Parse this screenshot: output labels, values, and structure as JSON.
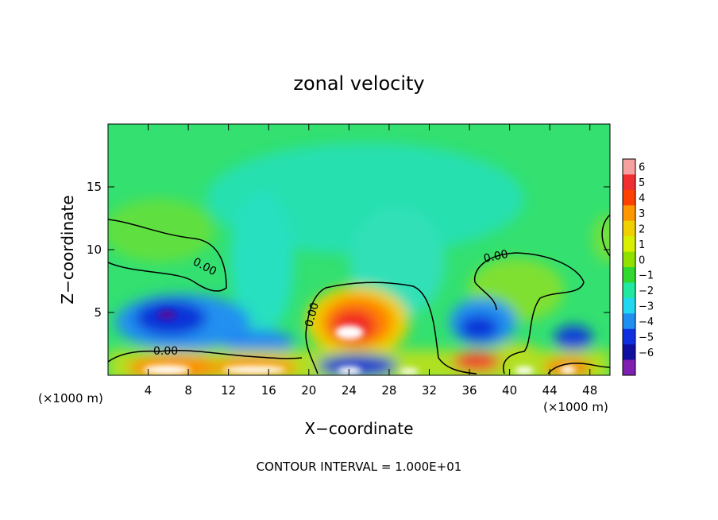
{
  "chart_data": {
    "type": "heatmap",
    "title": "zonal velocity",
    "xlabel": "X−coordinate",
    "ylabel": "Z−coordinate",
    "x_unit_label": "(×1000 m)",
    "y_unit_label": "(×1000 m)",
    "xlim": [
      0,
      50
    ],
    "ylim": [
      0,
      20
    ],
    "x_ticks": [
      "4",
      "8",
      "12",
      "16",
      "20",
      "24",
      "28",
      "32",
      "36",
      "40",
      "44",
      "48"
    ],
    "x_tick_values": [
      4,
      8,
      12,
      16,
      20,
      24,
      28,
      32,
      36,
      40,
      44,
      48
    ],
    "y_ticks": [
      "5",
      "10",
      "15"
    ],
    "y_tick_values": [
      5,
      10,
      15
    ],
    "colorbar": {
      "labels": [
        "6",
        "5",
        "4",
        "3",
        "2",
        "1",
        "0",
        "−1",
        "−2",
        "−3",
        "−4",
        "−5",
        "−6"
      ],
      "values": [
        6,
        5,
        4,
        3,
        2,
        1,
        0,
        -1,
        -2,
        -3,
        -4,
        -5,
        -6
      ],
      "colors": [
        "#f7a0a0",
        "#f03030",
        "#ff4000",
        "#ff9800",
        "#f0d000",
        "#d8f000",
        "#90e000",
        "#30d830",
        "#20e8a0",
        "#20d8f0",
        "#2090f0",
        "#1030e0",
        "#1010a0",
        "#8020b0"
      ]
    },
    "contour_labels": [
      "0.00",
      "0.00",
      "0.00",
      "0.00"
    ],
    "footer": "CONTOUR INTERVAL = 1.000E+01",
    "features": [
      {
        "kind": "negative",
        "x": 6,
        "z": 4.5,
        "value": -5
      },
      {
        "kind": "negative",
        "x": 14,
        "z": 3,
        "value": -3
      },
      {
        "kind": "positive",
        "x": 25,
        "z": 4,
        "value": 5
      },
      {
        "kind": "negative",
        "x": 37,
        "z": 3.8,
        "value": -4
      },
      {
        "kind": "negative",
        "x": 46,
        "z": 3,
        "value": -4
      },
      {
        "kind": "positive",
        "x": 40,
        "z": 7.5,
        "value": 1
      }
    ]
  }
}
